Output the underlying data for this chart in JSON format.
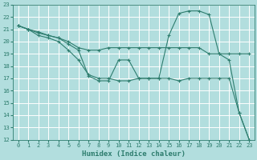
{
  "xlabel": "Humidex (Indice chaleur)",
  "bg_color": "#b2dede",
  "grid_color": "#ffffff",
  "line_color": "#2e7d6e",
  "xlim": [
    -0.5,
    23.5
  ],
  "ylim": [
    12,
    23
  ],
  "xticks": [
    0,
    1,
    2,
    3,
    4,
    5,
    6,
    7,
    8,
    9,
    10,
    11,
    12,
    13,
    14,
    15,
    16,
    17,
    18,
    19,
    20,
    21,
    22,
    23
  ],
  "yticks": [
    12,
    13,
    14,
    15,
    16,
    17,
    18,
    19,
    20,
    21,
    22,
    23
  ],
  "line1_x": [
    0,
    1,
    2,
    3,
    4,
    5,
    6,
    7,
    8,
    9,
    10,
    11,
    12,
    13,
    14,
    15,
    16,
    17,
    18,
    19,
    20,
    21,
    22,
    23
  ],
  "line1_y": [
    21.3,
    21.0,
    20.8,
    20.5,
    20.3,
    20.0,
    19.5,
    19.3,
    19.3,
    19.5,
    19.5,
    19.5,
    19.5,
    19.5,
    19.5,
    19.5,
    19.5,
    19.5,
    19.5,
    19.0,
    19.0,
    19.0,
    19.0,
    19.0
  ],
  "line2_x": [
    0,
    1,
    2,
    3,
    4,
    5,
    6,
    7,
    8,
    9,
    10,
    11,
    12,
    13,
    14,
    15,
    16,
    17,
    18,
    19,
    20,
    21,
    22,
    23
  ],
  "line2_y": [
    21.3,
    21.0,
    20.7,
    20.5,
    20.3,
    19.8,
    19.3,
    17.2,
    16.8,
    16.8,
    18.5,
    18.5,
    17.0,
    17.0,
    17.0,
    20.5,
    22.3,
    22.5,
    22.5,
    22.2,
    19.0,
    18.5,
    14.2,
    12.0
  ],
  "line3_x": [
    0,
    1,
    2,
    3,
    4,
    5,
    6,
    7,
    8,
    9,
    10,
    11,
    12,
    13,
    14,
    15,
    16,
    17,
    18,
    19,
    20,
    21,
    22,
    23
  ],
  "line3_y": [
    21.3,
    21.0,
    20.5,
    20.3,
    20.0,
    19.3,
    18.5,
    17.3,
    17.0,
    17.0,
    16.8,
    16.8,
    17.0,
    17.0,
    17.0,
    17.0,
    16.8,
    17.0,
    17.0,
    17.0,
    17.0,
    17.0,
    14.2,
    12.0
  ]
}
